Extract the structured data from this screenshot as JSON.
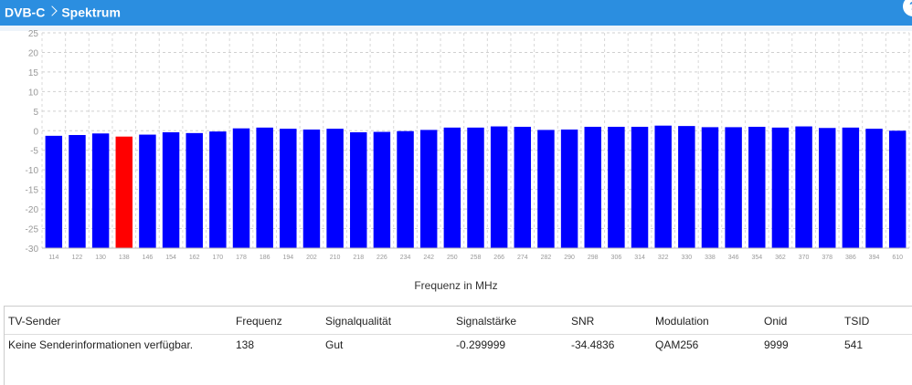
{
  "header": {
    "crumb_root": "DVB-C",
    "crumb_current": "Spektrum",
    "help_label": "?"
  },
  "colors": {
    "header_bg": "#2b8ee0",
    "bar": "#0000ff",
    "bar_selected": "#ff0000"
  },
  "chart_data": {
    "type": "bar",
    "xlabel": "Frequenz in MHz",
    "ylabel": "",
    "ylim": [
      -30,
      25
    ],
    "yticks": [
      25,
      20,
      15,
      10,
      5,
      0,
      -5,
      -10,
      -15,
      -20,
      -25,
      -30
    ],
    "grid": true,
    "categories": [
      "114",
      "122",
      "130",
      "138",
      "146",
      "154",
      "162",
      "170",
      "178",
      "186",
      "194",
      "202",
      "210",
      "218",
      "226",
      "234",
      "242",
      "250",
      "258",
      "266",
      "274",
      "282",
      "290",
      "298",
      "306",
      "314",
      "322",
      "330",
      "338",
      "346",
      "354",
      "362",
      "370",
      "378",
      "386",
      "394",
      "610"
    ],
    "values": [
      -1.3,
      -1.1,
      -0.7,
      -1.5,
      -1.0,
      -0.4,
      -0.6,
      -0.2,
      0.6,
      0.8,
      0.5,
      0.3,
      0.5,
      -0.4,
      -0.3,
      -0.1,
      0.2,
      0.8,
      0.8,
      1.1,
      1.0,
      0.2,
      0.3,
      1.0,
      1.0,
      1.0,
      1.3,
      1.2,
      0.9,
      0.9,
      1.0,
      0.8,
      1.1,
      0.7,
      0.8,
      0.5,
      0.0
    ],
    "selected_category": "138"
  },
  "table": {
    "headers": [
      "TV-Sender",
      "Frequenz",
      "Signalqualität",
      "Signalstärke",
      "SNR",
      "Modulation",
      "Onid",
      "TSID"
    ],
    "rows": [
      [
        "Keine Senderinformationen verfügbar.",
        "138",
        "Gut",
        "-0.299999",
        "-34.4836",
        "QAM256",
        "9999",
        "541"
      ]
    ]
  }
}
